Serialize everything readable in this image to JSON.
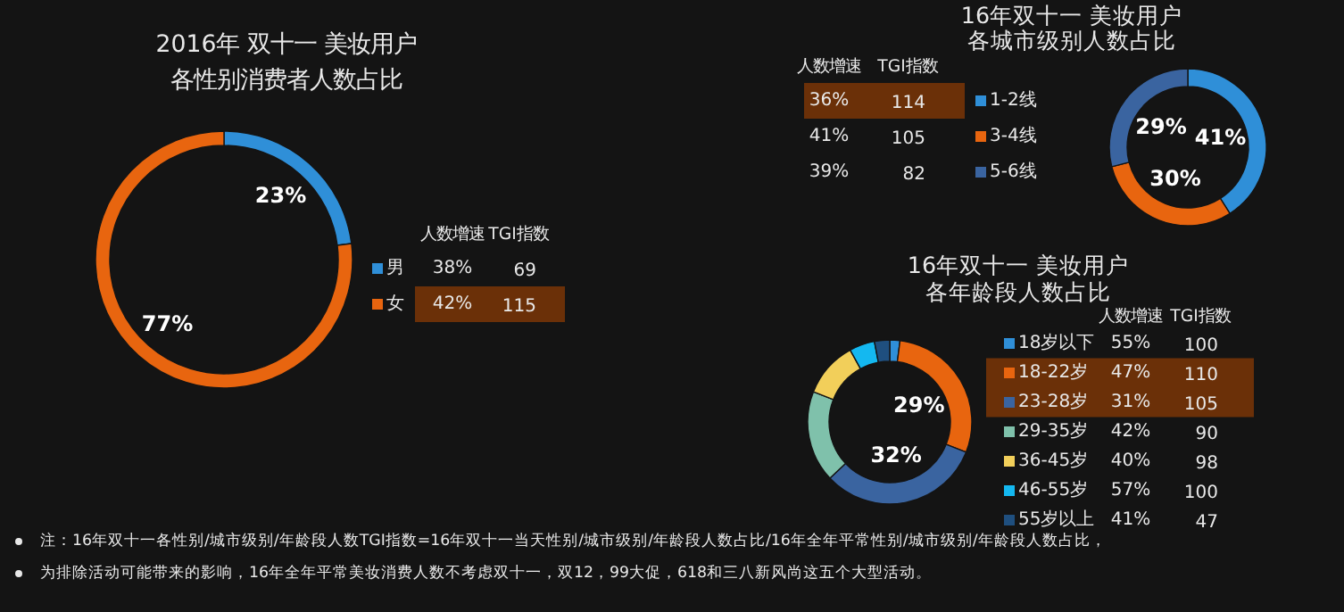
{
  "chart_data": [
    {
      "type": "donut",
      "title": "2016年 双十一 美妆用户",
      "subtitle": "各性别消费者人数占比",
      "categories": [
        "男",
        "女"
      ],
      "values": [
        23,
        77
      ],
      "colors": [
        "#2f8fd8",
        "#e8650f"
      ],
      "value_labels": [
        "23%",
        "77%"
      ],
      "legend": "right",
      "annotations": [
        "人数增速",
        "TGI指数",
        "38%",
        "69",
        "42%",
        "115",
        "注：16年双十一各性别/城市级别/年龄段人数TGI指数=16年双十一当天性别/城市级别/年龄段人数占比/16年全年平常性别/城市级别/年龄段人数占比，",
        "为排除活动可能带来的影响，16年全年平常美妆消费人数不考虑双十一，双12，99大促，618和三八新风尚这五个大型活动。"
      ]
    },
    {
      "type": "donut",
      "title": "16年双十一 美妆用户",
      "subtitle": "各城市级别人数占比",
      "categories": [
        "1-2线",
        "3-4线",
        "5-6线"
      ],
      "values": [
        41,
        30,
        29
      ],
      "colors": [
        "#2f8fd8",
        "#e8650f",
        "#3a64a0"
      ],
      "value_labels": [
        "41%",
        "30%",
        "29%"
      ],
      "legend": "left",
      "annotations": [
        "人数增速",
        "TGI指数",
        "36%",
        "114",
        "41%",
        "105",
        "39%",
        "82"
      ]
    },
    {
      "type": "donut",
      "title": "16年双十一 美妆用户",
      "subtitle": "各年龄段人数占比",
      "categories": [
        "18岁以下",
        "18-22岁",
        "23-28岁",
        "29-35岁",
        "36-45岁",
        "46-55岁",
        "55岁以上"
      ],
      "values": [
        2,
        29,
        32,
        18,
        11,
        5,
        3
      ],
      "colors": [
        "#2f8fd8",
        "#e8650f",
        "#3a64a0",
        "#7fc1ab",
        "#f2cf5a",
        "#14b8f0",
        "#1f4f7f"
      ],
      "value_labels": [
        null,
        "29%",
        "32%",
        null,
        null,
        null,
        null
      ],
      "legend": "right",
      "annotations": [
        "人数增速",
        "TGI指数",
        "55%",
        "100",
        "47%",
        "110",
        "31%",
        "105",
        "42%",
        "90",
        "40%",
        "98",
        "57%",
        "100",
        "41%",
        "47"
      ]
    }
  ]
}
